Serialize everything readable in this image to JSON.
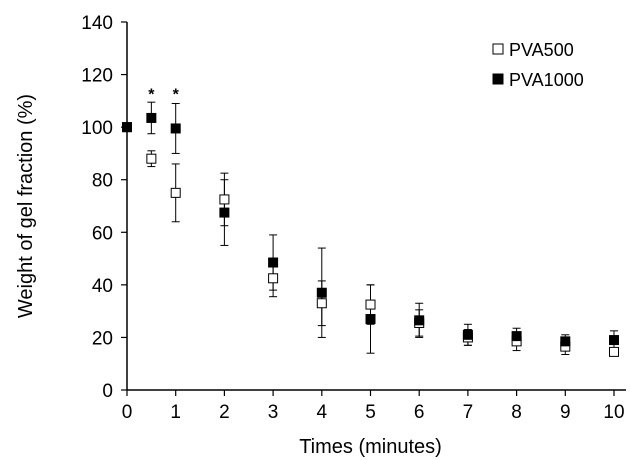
{
  "chart_data": {
    "type": "scatter",
    "xlabel": "Times (minutes)",
    "ylabel": "Weight of gel fraction (%)",
    "xlim": [
      0,
      10
    ],
    "ylim": [
      0,
      140
    ],
    "xticks": [
      "0",
      "1",
      "2",
      "3",
      "4",
      "5",
      "6",
      "7",
      "8",
      "9",
      "10"
    ],
    "yticks": [
      "0",
      "20",
      "40",
      "60",
      "80",
      "100",
      "120",
      "140"
    ],
    "grid": false,
    "legend_position": "top-right",
    "series": [
      {
        "name": "PVA500",
        "marker": "open-square",
        "color": "#000000",
        "x": [
          0,
          0.5,
          1,
          2,
          3,
          4,
          5,
          6,
          7,
          8,
          9,
          10
        ],
        "y": [
          100,
          88,
          75,
          72.5,
          42.5,
          33,
          32.5,
          25.5,
          20,
          18.5,
          16.5,
          14.5
        ],
        "error": [
          0,
          3,
          11,
          10,
          7,
          8.5,
          7.5,
          5,
          3,
          3.5,
          3,
          1.5
        ]
      },
      {
        "name": "PVA1000",
        "marker": "filled-square",
        "color": "#000000",
        "x": [
          0,
          0.5,
          1,
          2,
          3,
          4,
          5,
          6,
          7,
          8,
          9,
          10
        ],
        "y": [
          100,
          103.5,
          99.5,
          67.5,
          48.5,
          37,
          27,
          26.5,
          21,
          20.5,
          18.5,
          19
        ],
        "error": [
          0,
          6,
          9.5,
          12.5,
          10.5,
          17,
          13,
          6.5,
          4,
          3,
          2.5,
          3.5
        ]
      }
    ],
    "annotations": [
      {
        "text": "*",
        "x": 0.5,
        "y": 110.5
      },
      {
        "text": "*",
        "x": 1,
        "y": 110.5
      }
    ]
  }
}
